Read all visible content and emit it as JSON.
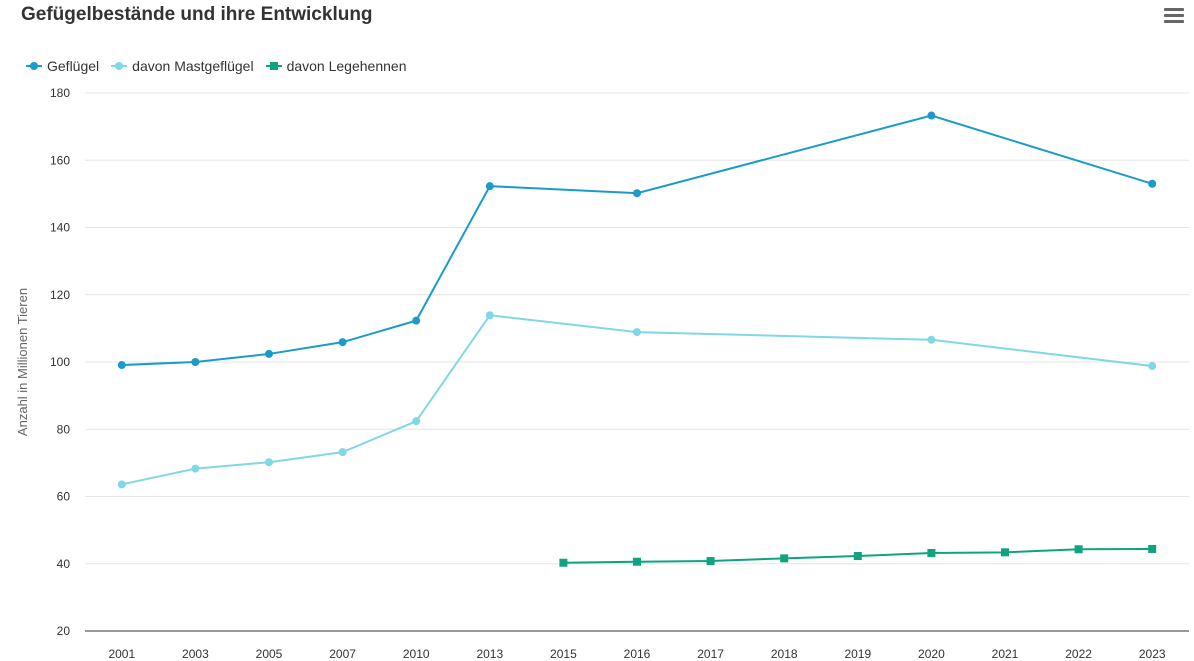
{
  "title": "Gefügelbestände und ihre Entwicklung",
  "menu_icon": "hamburger-menu-icon",
  "chart_data": {
    "type": "line",
    "title": "Gefügelbestände und ihre Entwicklung",
    "xlabel": "",
    "ylabel": "Anzahl in Millionen Tieren",
    "categories": [
      "2001",
      "2003",
      "2005",
      "2007",
      "2010",
      "2013",
      "2015",
      "2016",
      "2017",
      "2018",
      "2019",
      "2020",
      "2021",
      "2022",
      "2023"
    ],
    "ylim": [
      20,
      180
    ],
    "yticks": [
      20,
      40,
      60,
      80,
      100,
      120,
      140,
      160,
      180
    ],
    "grid": true,
    "legend_position": "top-left",
    "series": [
      {
        "name": "Geflügel",
        "color": "#1a9bcc",
        "marker": "circle",
        "values": [
          99.1,
          100.0,
          102.4,
          105.9,
          112.3,
          152.3,
          null,
          150.2,
          null,
          null,
          null,
          173.3,
          null,
          null,
          153.0
        ]
      },
      {
        "name": "davon Mastgeflügel",
        "color": "#80d8e6",
        "marker": "circle",
        "values": [
          63.6,
          68.3,
          70.2,
          73.2,
          82.4,
          113.9,
          null,
          108.9,
          null,
          null,
          null,
          106.6,
          null,
          null,
          98.8
        ]
      },
      {
        "name": "davon Legehennen",
        "color": "#0fa37f",
        "marker": "square",
        "values": [
          null,
          null,
          null,
          null,
          null,
          null,
          40.3,
          40.6,
          40.8,
          41.6,
          42.3,
          43.2,
          43.4,
          44.3,
          44.4
        ]
      }
    ]
  }
}
